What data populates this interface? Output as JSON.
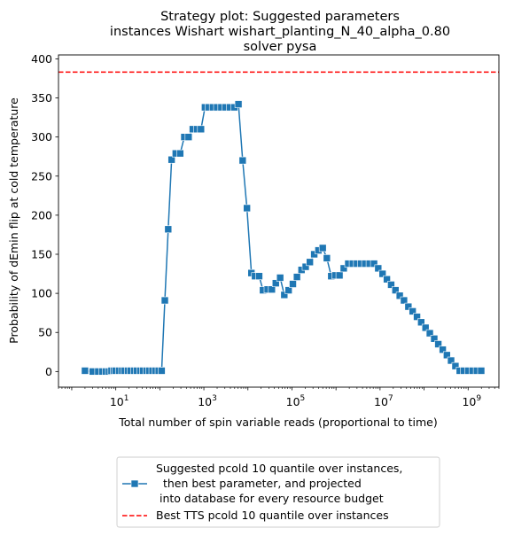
{
  "chart_data": {
    "type": "line",
    "title_lines": [
      "Strategy plot: Suggested parameters",
      "instances Wishart wishart_planting_N_40_alpha_0.80",
      "solver pysa"
    ],
    "xlabel": "Total number of spin variable reads (proportional to time)",
    "ylabel": "Probability of dEmin flip at cold temperature",
    "xscale": "log",
    "xlim": [
      0.5,
      5000000000
    ],
    "ylim": [
      -20,
      405
    ],
    "xticks": [
      {
        "value": 10,
        "base": "10",
        "exp": "1"
      },
      {
        "value": 1000,
        "base": "10",
        "exp": "3"
      },
      {
        "value": 100000,
        "base": "10",
        "exp": "5"
      },
      {
        "value": 10000000,
        "base": "10",
        "exp": "7"
      },
      {
        "value": 1000000000,
        "base": "10",
        "exp": "9"
      }
    ],
    "yticks": [
      0,
      50,
      100,
      150,
      200,
      250,
      300,
      350,
      400
    ],
    "grid": false,
    "legend_position": "below plot",
    "series": [
      {
        "name": "Suggested pcold 10 quantile over instances,\n  then best parameter, and projected\n into database for every resource budget",
        "style": "solid line with square markers",
        "color": "#1f77b4",
        "points": [
          [
            2,
            1
          ],
          [
            3,
            0
          ],
          [
            4,
            0
          ],
          [
            5,
            0
          ],
          [
            6,
            0
          ],
          [
            7,
            0
          ],
          [
            8,
            1
          ],
          [
            9,
            1
          ],
          [
            10,
            1
          ],
          [
            12,
            1
          ],
          [
            14,
            1
          ],
          [
            16,
            1
          ],
          [
            19,
            1
          ],
          [
            22,
            1
          ],
          [
            26,
            1
          ],
          [
            30,
            1
          ],
          [
            36,
            1
          ],
          [
            42,
            1
          ],
          [
            50,
            1
          ],
          [
            58,
            1
          ],
          [
            68,
            1
          ],
          [
            80,
            1
          ],
          [
            94,
            1
          ],
          [
            110,
            1
          ],
          [
            130,
            91
          ],
          [
            155,
            182
          ],
          [
            185,
            271
          ],
          [
            230,
            279
          ],
          [
            290,
            279
          ],
          [
            360,
            300
          ],
          [
            450,
            300
          ],
          [
            560,
            310
          ],
          [
            700,
            310
          ],
          [
            860,
            310
          ],
          [
            1060,
            338
          ],
          [
            1300,
            338
          ],
          [
            1600,
            338
          ],
          [
            2000,
            338
          ],
          [
            2500,
            338
          ],
          [
            3100,
            338
          ],
          [
            3900,
            338
          ],
          [
            4900,
            338
          ],
          [
            6100,
            342
          ],
          [
            7600,
            270
          ],
          [
            9500,
            209
          ],
          [
            12000,
            126
          ],
          [
            14500,
            122
          ],
          [
            18000,
            122
          ],
          [
            22000,
            104
          ],
          [
            28000,
            105
          ],
          [
            35000,
            105
          ],
          [
            43000,
            113
          ],
          [
            54000,
            120
          ],
          [
            67000,
            98
          ],
          [
            84000,
            104
          ],
          [
            105000,
            112
          ],
          [
            130000,
            121
          ],
          [
            165000,
            130
          ],
          [
            205000,
            134
          ],
          [
            255000,
            140
          ],
          [
            320000,
            150
          ],
          [
            400000,
            155
          ],
          [
            500000,
            158
          ],
          [
            620000,
            145
          ],
          [
            780000,
            122
          ],
          [
            970000,
            123
          ],
          [
            1200000,
            123
          ],
          [
            1500000,
            132
          ],
          [
            1900000,
            138
          ],
          [
            2400000,
            138
          ],
          [
            3000000,
            138
          ],
          [
            3700000,
            138
          ],
          [
            4600000,
            138
          ],
          [
            5800000,
            138
          ],
          [
            7300000,
            138
          ],
          [
            9100000,
            132
          ],
          [
            11400000,
            125
          ],
          [
            14300000,
            118
          ],
          [
            17900000,
            111
          ],
          [
            22400000,
            104
          ],
          [
            28000000,
            97
          ],
          [
            35000000,
            91
          ],
          [
            44000000,
            83
          ],
          [
            55000000,
            77
          ],
          [
            69000000,
            70
          ],
          [
            86000000,
            63
          ],
          [
            108000000,
            56
          ],
          [
            135000000,
            49
          ],
          [
            170000000,
            42
          ],
          [
            210000000,
            35
          ],
          [
            265000000,
            28
          ],
          [
            330000000,
            21
          ],
          [
            410000000,
            14
          ],
          [
            515000000,
            7
          ],
          [
            645000000,
            1
          ],
          [
            810000000,
            1
          ],
          [
            1010000000,
            1
          ],
          [
            1260000000,
            1
          ],
          [
            1580000000,
            1
          ],
          [
            1980000000,
            1
          ]
        ]
      }
    ],
    "reference_lines": [
      {
        "name": "Best TTS pcold 10 quantile over instances",
        "y": 383,
        "style": "dashed",
        "color": "#ff0000"
      }
    ]
  }
}
